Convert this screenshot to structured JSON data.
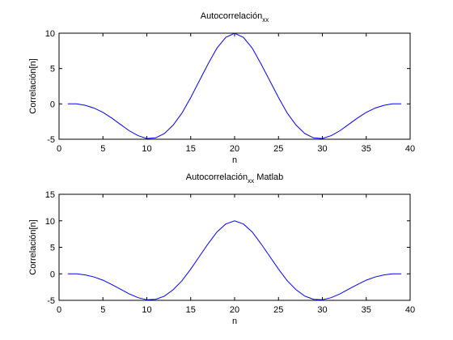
{
  "chart_data": [
    {
      "type": "line",
      "title": "Autocorrelación",
      "title_subscript": "xx",
      "title_suffix": "",
      "xlabel": "n",
      "ylabel": "Correlación[n]",
      "xlim": [
        0,
        40
      ],
      "ylim": [
        -5,
        10
      ],
      "xticks": [
        0,
        5,
        10,
        15,
        20,
        25,
        30,
        35,
        40
      ],
      "yticks": [
        -5,
        0,
        5,
        10
      ],
      "grid": false,
      "line_color": "#0000ff",
      "series": [
        {
          "x": [
            1,
            2,
            3,
            4,
            5,
            6,
            7,
            8,
            9,
            10,
            11,
            12,
            13,
            14,
            15,
            16,
            17,
            18,
            19,
            20,
            21,
            22,
            23,
            24,
            25,
            26,
            27,
            28,
            29,
            30,
            31,
            32,
            33,
            34,
            35,
            36,
            37,
            38,
            39
          ],
          "values": [
            0.0,
            0.0,
            -0.2,
            -0.6,
            -1.2,
            -2.0,
            -2.9,
            -3.8,
            -4.5,
            -4.9,
            -4.8,
            -4.2,
            -3.0,
            -1.3,
            0.9,
            3.3,
            5.7,
            7.9,
            9.4,
            10.0,
            9.4,
            7.9,
            5.7,
            3.3,
            0.9,
            -1.3,
            -3.0,
            -4.2,
            -4.8,
            -4.9,
            -4.5,
            -3.8,
            -2.9,
            -2.0,
            -1.2,
            -0.6,
            -0.2,
            0.0,
            0.0
          ]
        }
      ]
    },
    {
      "type": "line",
      "title": "Autocorrelación",
      "title_subscript": "xx",
      "title_suffix": " Matlab",
      "xlabel": "n",
      "ylabel": "Correlación[n]",
      "xlim": [
        0,
        40
      ],
      "ylim": [
        -5,
        15
      ],
      "xticks": [
        0,
        5,
        10,
        15,
        20,
        25,
        30,
        35,
        40
      ],
      "yticks": [
        -5,
        0,
        5,
        10,
        15
      ],
      "grid": false,
      "line_color": "#0000ff",
      "series": [
        {
          "x": [
            1,
            2,
            3,
            4,
            5,
            6,
            7,
            8,
            9,
            10,
            11,
            12,
            13,
            14,
            15,
            16,
            17,
            18,
            19,
            20,
            21,
            22,
            23,
            24,
            25,
            26,
            27,
            28,
            29,
            30,
            31,
            32,
            33,
            34,
            35,
            36,
            37,
            38,
            39
          ],
          "values": [
            0.0,
            0.0,
            -0.2,
            -0.6,
            -1.2,
            -2.0,
            -2.9,
            -3.8,
            -4.5,
            -4.9,
            -4.8,
            -4.2,
            -3.0,
            -1.3,
            0.9,
            3.3,
            5.7,
            7.9,
            9.4,
            10.0,
            9.4,
            7.9,
            5.7,
            3.3,
            0.9,
            -1.3,
            -3.0,
            -4.2,
            -4.8,
            -4.9,
            -4.5,
            -3.8,
            -2.9,
            -2.0,
            -1.2,
            -0.6,
            -0.2,
            0.0,
            0.0
          ]
        }
      ]
    }
  ]
}
